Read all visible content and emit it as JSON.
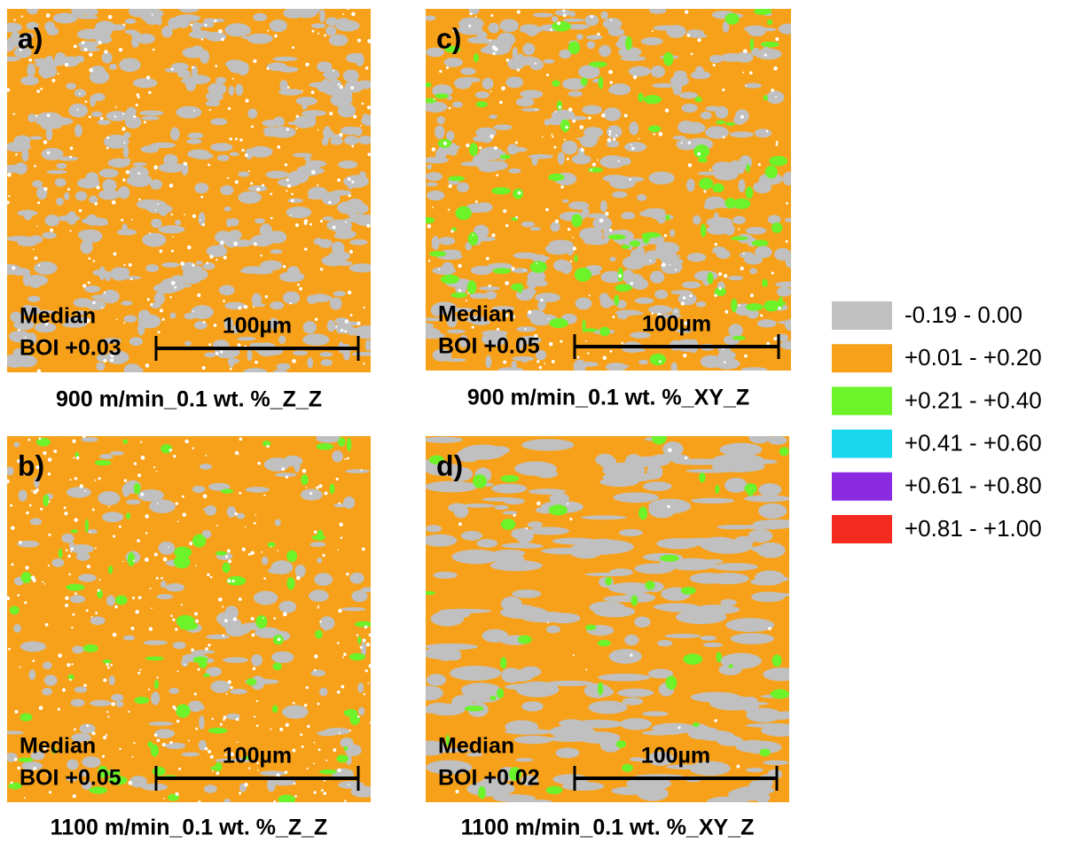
{
  "panels": [
    {
      "label": "a)",
      "median": "Median",
      "boi": "BOI +0.03",
      "scale": "100µm",
      "caption": "900 m/min_0.1 wt. %_Z_Z"
    },
    {
      "label": "c)",
      "median": "Median",
      "boi": "BOI +0.05",
      "scale": "100µm",
      "caption": "900 m/min_0.1 wt. %_XY_Z"
    },
    {
      "label": "b)",
      "median": "Median",
      "boi": "BOI +0.05",
      "scale": "100µm",
      "caption": "1100 m/min_0.1 wt. %_Z_Z"
    },
    {
      "label": "d)",
      "median": "Median",
      "boi": "BOI +0.02",
      "scale": "100µm",
      "caption": "1100 m/min_0.1 wt. %_XY_Z"
    }
  ],
  "legend": [
    {
      "label": "-0.19 - 0.00",
      "color": "#c0c0c0"
    },
    {
      "label": "+0.01 - +0.20",
      "color": "#f7a11a"
    },
    {
      "label": "+0.21 - +0.40",
      "color": "#6cf32a"
    },
    {
      "label": "+0.41 - +0.60",
      "color": "#1ad7ee"
    },
    {
      "label": "+0.61 - +0.80",
      "color": "#8a2be2"
    },
    {
      "label": "+0.81 - +1.00",
      "color": "#f42a1e"
    }
  ]
}
